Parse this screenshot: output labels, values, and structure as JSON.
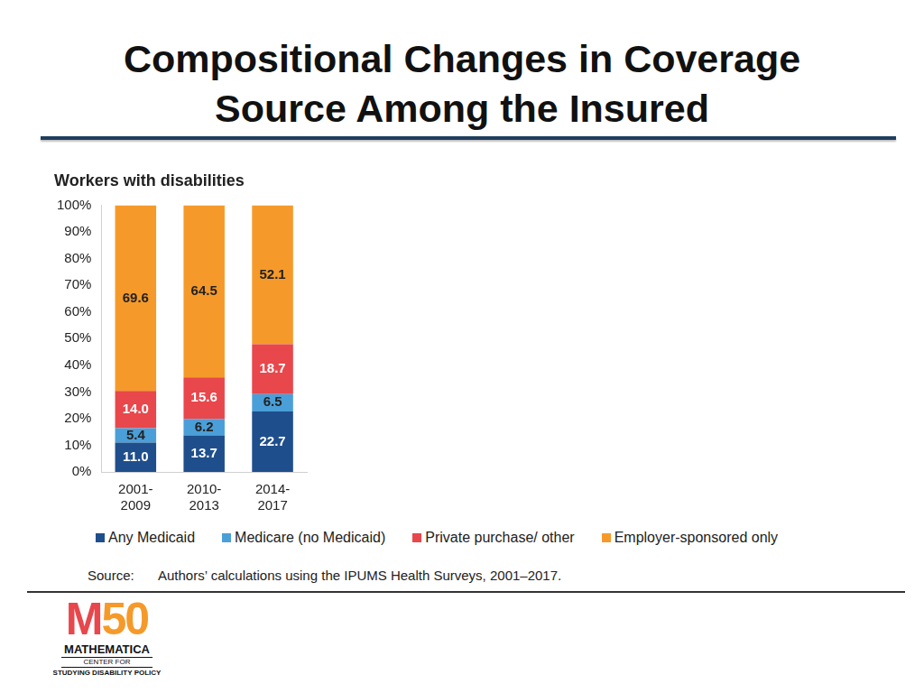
{
  "header": {
    "title": "Compositional Changes in Coverage Source Among the Insured"
  },
  "chart_data": {
    "type": "bar",
    "title": "Workers with disabilities",
    "categories": [
      "2001-2009",
      "2010-2013",
      "2014-2017"
    ],
    "series": [
      {
        "name": "Any Medicaid",
        "color": "#1f4e8c",
        "values": [
          11.0,
          13.7,
          22.7
        ],
        "value_labels": [
          "11.0",
          "13.7",
          "22.7"
        ]
      },
      {
        "name": "Medicare (no Medicaid)",
        "color": "#4a9fd8",
        "values": [
          5.4,
          6.2,
          6.5
        ],
        "value_labels": [
          "5.4",
          "6.2",
          "6.5"
        ]
      },
      {
        "name": "Private purchase/ other",
        "color": "#e8474c",
        "values": [
          14.0,
          15.6,
          18.7
        ],
        "value_labels": [
          "14.0",
          "15.6",
          "18.7"
        ]
      },
      {
        "name": "Employer-sponsored only",
        "color": "#f59a2a",
        "values": [
          69.6,
          64.5,
          52.1
        ],
        "value_labels": [
          "69.6",
          "64.5",
          "52.1"
        ]
      }
    ],
    "ylim": [
      0,
      100
    ],
    "yticks": [
      {
        "value": 0,
        "label": "0%"
      },
      {
        "value": 10,
        "label": "10%"
      },
      {
        "value": 20,
        "label": "20%"
      },
      {
        "value": 30,
        "label": "30%"
      },
      {
        "value": 40,
        "label": "40%"
      },
      {
        "value": 50,
        "label": "50%"
      },
      {
        "value": 60,
        "label": "60%"
      },
      {
        "value": 70,
        "label": "70%"
      },
      {
        "value": 80,
        "label": "80%"
      },
      {
        "value": 90,
        "label": "90%"
      },
      {
        "value": 100,
        "label": "100%"
      }
    ],
    "stacked": true,
    "grid": false,
    "legend": "bottom",
    "data_labels": true
  },
  "footer": {
    "source_label": "Source:",
    "source": "Authors’ calculations using the IPUMS Health Surveys, 2001–2017.",
    "logo": [
      "M50",
      "MATHEMATICA",
      "CENTER FOR",
      "STUDYING DISABILITY POLICY"
    ]
  }
}
